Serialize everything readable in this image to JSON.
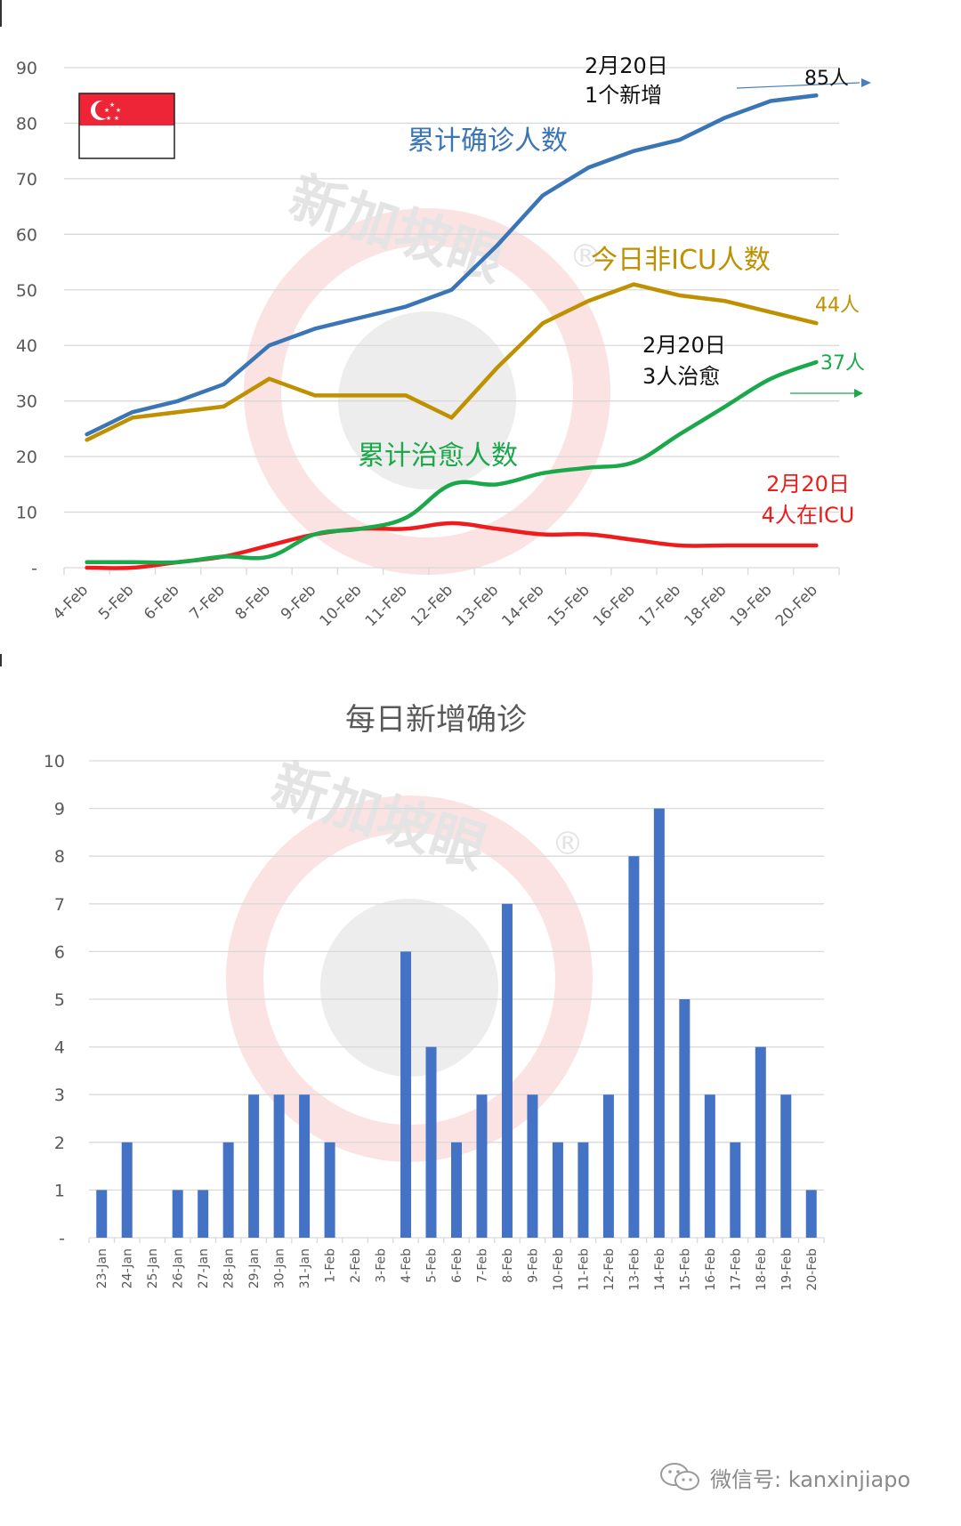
{
  "top_chart": {
    "flag": {
      "name": "Singapore flag",
      "colors": {
        "red": "#ee2536",
        "white": "#ffffff"
      }
    },
    "y_ticks": [
      "90",
      "80",
      "70",
      "60",
      "50",
      "40",
      "30",
      "20",
      "10",
      "-"
    ],
    "series_labels": {
      "confirmed": "累计确诊人数",
      "non_icu": "今日非ICU人数",
      "recovered": "累计治愈人数"
    },
    "annotations": {
      "confirmed_note_line1": "2月20日",
      "confirmed_note_line2": "1个新增",
      "confirmed_end": "85人",
      "non_icu_end": "44人",
      "recovered_note_line1": "2月20日",
      "recovered_note_line2": "3人治愈",
      "recovered_end": "37人",
      "icu_note_line1": "2月20日",
      "icu_note_line2": "4人在ICU"
    },
    "colors": {
      "confirmed": "#3a75b5",
      "non_icu": "#bf9000",
      "recovered": "#1aa84a",
      "icu": "#ee1c1c"
    }
  },
  "bottom_chart": {
    "title": "每日新增确诊",
    "y_ticks": [
      "10",
      "9",
      "8",
      "7",
      "6",
      "5",
      "4",
      "3",
      "2",
      "1",
      "-"
    ],
    "bar_color": "#4472c4"
  },
  "watermark": {
    "text": "新加坡眼",
    "registered": "®"
  },
  "footer": {
    "label": "微信号: kanxinjiapo"
  },
  "chart_data": [
    {
      "type": "line",
      "title": "",
      "xlabel": "",
      "ylabel": "",
      "ylim": [
        0,
        90
      ],
      "grid": true,
      "legend_position": "inline labels",
      "categories": [
        "4-Feb",
        "5-Feb",
        "6-Feb",
        "7-Feb",
        "8-Feb",
        "9-Feb",
        "10-Feb",
        "11-Feb",
        "12-Feb",
        "13-Feb",
        "14-Feb",
        "15-Feb",
        "16-Feb",
        "17-Feb",
        "18-Feb",
        "19-Feb",
        "20-Feb"
      ],
      "series": [
        {
          "name": "累计确诊人数",
          "values": [
            24,
            28,
            30,
            33,
            40,
            43,
            45,
            47,
            50,
            58,
            67,
            72,
            75,
            77,
            81,
            84,
            85
          ]
        },
        {
          "name": "今日非ICU人数",
          "values": [
            23,
            27,
            28,
            29,
            34,
            31,
            31,
            31,
            27,
            36,
            44,
            48,
            51,
            49,
            48,
            46,
            44
          ]
        },
        {
          "name": "累计治愈人数",
          "values": [
            1,
            1,
            1,
            2,
            2,
            6,
            7,
            9,
            15,
            15,
            17,
            18,
            19,
            24,
            29,
            34,
            37
          ]
        },
        {
          "name": "ICU",
          "values": [
            0,
            0,
            1,
            2,
            4,
            6,
            7,
            7,
            8,
            7,
            6,
            6,
            5,
            4,
            4,
            4,
            4
          ]
        }
      ],
      "annotations": [
        "2月20日 1个新增 → 85人",
        "44人",
        "2月20日 3人治愈 → 37人",
        "2月20日 4人在ICU"
      ]
    },
    {
      "type": "bar",
      "title": "每日新增确诊",
      "xlabel": "",
      "ylabel": "",
      "ylim": [
        0,
        10
      ],
      "grid": true,
      "categories": [
        "23-Jan",
        "24-Jan",
        "25-Jan",
        "26-Jan",
        "27-Jan",
        "28-Jan",
        "29-Jan",
        "30-Jan",
        "31-Jan",
        "1-Feb",
        "2-Feb",
        "3-Feb",
        "4-Feb",
        "5-Feb",
        "6-Feb",
        "7-Feb",
        "8-Feb",
        "9-Feb",
        "10-Feb",
        "11-Feb",
        "12-Feb",
        "13-Feb",
        "14-Feb",
        "15-Feb",
        "16-Feb",
        "17-Feb",
        "18-Feb",
        "19-Feb",
        "20-Feb"
      ],
      "values": [
        1,
        2,
        0,
        1,
        1,
        2,
        3,
        3,
        3,
        2,
        0,
        0,
        6,
        4,
        2,
        3,
        7,
        3,
        2,
        2,
        3,
        8,
        9,
        5,
        3,
        2,
        4,
        3,
        1
      ]
    }
  ]
}
